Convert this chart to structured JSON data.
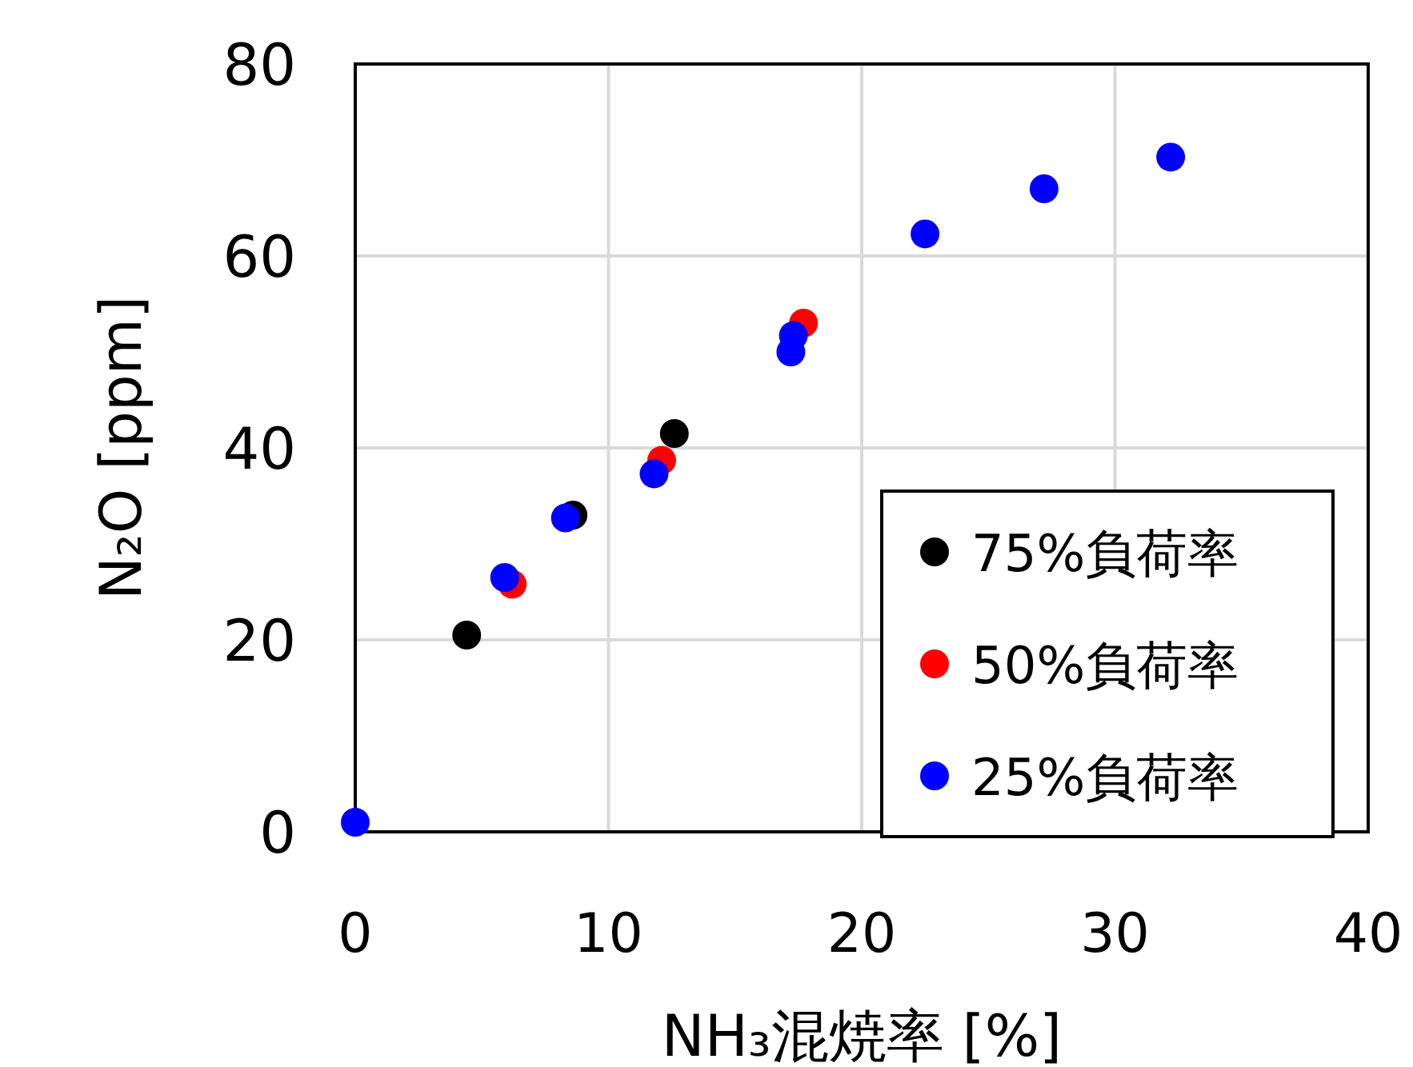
{
  "chart_data": {
    "type": "scatter",
    "xlabel": "NH₃混焼率 [%]",
    "ylabel": "N₂O [ppm]",
    "xlim": [
      0,
      40
    ],
    "ylim": [
      0,
      80
    ],
    "xticks": [
      0,
      10,
      20,
      30,
      40
    ],
    "yticks": [
      0,
      20,
      40,
      60,
      80
    ],
    "grid": true,
    "legend": "bottom right",
    "marker": "circle",
    "series": [
      {
        "name": "75%負荷率",
        "color": "#000000",
        "x": [
          4.4,
          8.6,
          12.6
        ],
        "values": [
          20.5,
          33,
          41.5
        ]
      },
      {
        "name": "50%負荷率",
        "color": "#ff0000",
        "x": [
          6.2,
          12.1,
          17.7
        ],
        "values": [
          25.8,
          38.7,
          53
        ]
      },
      {
        "name": "25%負荷率",
        "color": "#0000ff",
        "x": [
          0,
          5.9,
          8.3,
          11.8,
          17.2,
          17.3,
          22.5,
          27.2,
          32.2
        ],
        "values": [
          1,
          26.5,
          32.7,
          37.3,
          50,
          51.7,
          62.3,
          67,
          70.3
        ]
      }
    ]
  }
}
